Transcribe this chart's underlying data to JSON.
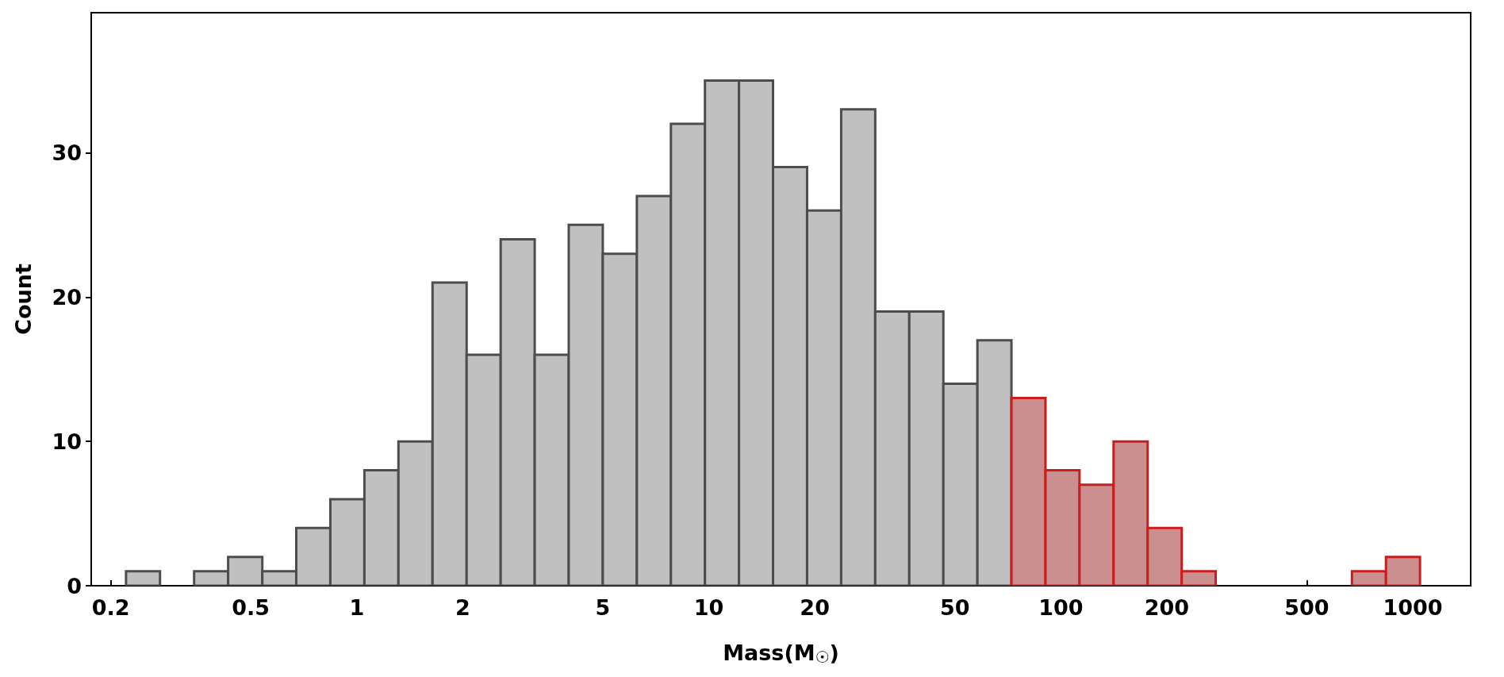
{
  "chart_data": {
    "type": "histogram",
    "xlabel": "Mass(M$_{☉}$)",
    "ylabel": "Count",
    "log": "x",
    "bins": [
      0.221,
      0.276,
      0.345,
      0.431,
      0.539,
      0.673,
      0.841,
      1.051,
      1.313,
      1.641,
      2.051,
      2.563,
      3.202,
      4.0,
      4.998,
      6.246,
      7.804,
      9.75,
      12.18,
      15.22,
      19.02,
      23.77,
      29.7,
      37.11,
      46.38,
      57.95,
      72.4,
      90.46,
      113.0,
      141.2,
      176.5,
      220.5,
      275.4,
      344.2,
      430.0,
      537.3,
      671.4,
      838.9,
      1048
    ],
    "values": [
      1,
      0,
      1,
      2,
      1,
      4,
      6,
      8,
      10,
      21,
      16,
      24,
      16,
      25,
      23,
      27,
      32,
      35,
      35,
      29,
      26,
      33,
      19,
      19,
      14,
      17,
      13,
      8,
      7,
      10,
      4,
      1,
      0,
      0,
      0,
      0,
      1,
      2
    ],
    "colors": [
      "#c0c0c0",
      "#c0c0c0",
      "#c0c0c0",
      "#c0c0c0",
      "#c0c0c0",
      "#c0c0c0",
      "#c0c0c0",
      "#c0c0c0",
      "#c0c0c0",
      "#c0c0c0",
      "#c0c0c0",
      "#c0c0c0",
      "#c0c0c0",
      "#c0c0c0",
      "#c0c0c0",
      "#c0c0c0",
      "#c0c0c0",
      "#c0c0c0",
      "#c0c0c0",
      "#c0c0c0",
      "#c0c0c0",
      "#c0c0c0",
      "#c0c0c0",
      "#c0c0c0",
      "#c0c0c0",
      "#c0c0c0",
      "#cc8f8f",
      "#cc8f8f",
      "#cc8f8f",
      "#cc8f8f",
      "#cc8f8f",
      "#cc8f8f",
      "#cc8f8f",
      "#cc8f8f",
      "#cc8f8f",
      "#cc8f8f",
      "#cc8f8f",
      "#cc8f8f"
    ],
    "xlim": [
      0.176,
      1460
    ],
    "xticks": [
      0.2,
      0.5,
      1,
      2,
      5,
      10,
      20,
      50,
      100,
      200,
      500,
      1000
    ],
    "ylim": [
      0,
      39.7
    ],
    "yticks": [
      0,
      10,
      20,
      30
    ]
  }
}
